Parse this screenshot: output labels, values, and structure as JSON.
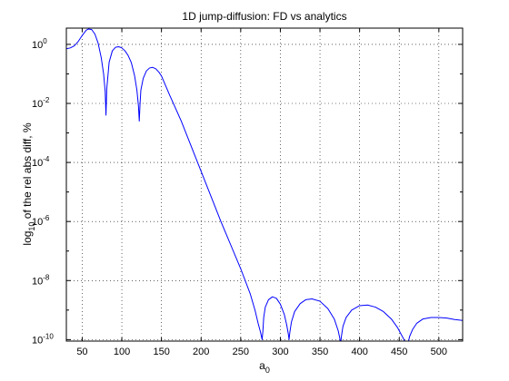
{
  "chart_data": {
    "type": "line",
    "title": "1D jump-diffusion: FD vs analytics",
    "xlabel": {
      "base": "a",
      "sub": "0"
    },
    "ylabel": {
      "pre": "log",
      "sub": "10",
      "post": " of the rel abs diff, %"
    },
    "xlim": [
      30,
      530
    ],
    "ylim_log10": [
      -10.05,
      0.55
    ],
    "y_scale": "log",
    "grid": true,
    "line_color": "#0000ff",
    "x_ticks": [
      50,
      100,
      150,
      200,
      250,
      300,
      350,
      400,
      450,
      500
    ],
    "y_ticks": [
      {
        "exp": 0,
        "label": "0"
      },
      {
        "exp": -2,
        "label": "-2"
      },
      {
        "exp": -4,
        "label": "-4"
      },
      {
        "exp": -6,
        "label": "-6"
      },
      {
        "exp": -8,
        "label": "-8"
      },
      {
        "exp": -10,
        "label": "-10"
      }
    ],
    "y_tick_base": "10",
    "series": [
      {
        "color": "#0000ff",
        "x": [
          30,
          35,
          40,
          45,
          50,
          55,
          58,
          62,
          66,
          70,
          74,
          77,
          79,
          80,
          81,
          84,
          88,
          92,
          96,
          100,
          104,
          108,
          112,
          116,
          119,
          121,
          122,
          123,
          124,
          127,
          131,
          135,
          139,
          143,
          147,
          150,
          160,
          175,
          200,
          225,
          250,
          262,
          268,
          272,
          275,
          277,
          278,
          279,
          281,
          285,
          290,
          295,
          300,
          305,
          308,
          310,
          311,
          312,
          314,
          318,
          325,
          332,
          340,
          350,
          360,
          368,
          373,
          375,
          376,
          377,
          379,
          383,
          390,
          400,
          410,
          420,
          430,
          440,
          448,
          453,
          457,
          459,
          460,
          461,
          463,
          467,
          472,
          480,
          490,
          500,
          510,
          520,
          530
        ],
        "log10_y": [
          -0.15,
          -0.12,
          -0.05,
          0.1,
          0.3,
          0.48,
          0.52,
          0.5,
          0.35,
          0.05,
          -0.45,
          -1.0,
          -1.6,
          -2.4,
          -1.5,
          -0.6,
          -0.22,
          -0.1,
          -0.08,
          -0.12,
          -0.22,
          -0.38,
          -0.62,
          -1.05,
          -1.55,
          -2.1,
          -2.6,
          -2.0,
          -1.55,
          -1.15,
          -0.9,
          -0.8,
          -0.78,
          -0.83,
          -0.95,
          -1.07,
          -1.7,
          -2.6,
          -4.3,
          -6.0,
          -7.6,
          -8.45,
          -9.0,
          -9.45,
          -9.75,
          -10.0,
          -9.7,
          -9.25,
          -8.9,
          -8.65,
          -8.55,
          -8.6,
          -8.8,
          -9.15,
          -9.5,
          -9.8,
          -10.0,
          -9.75,
          -9.4,
          -9.05,
          -8.78,
          -8.65,
          -8.62,
          -8.7,
          -8.95,
          -9.3,
          -9.7,
          -9.95,
          -10.15,
          -9.9,
          -9.55,
          -9.25,
          -9.0,
          -8.85,
          -8.83,
          -8.9,
          -9.05,
          -9.3,
          -9.6,
          -9.85,
          -10.05,
          -10.2,
          -10.25,
          -10.15,
          -9.9,
          -9.65,
          -9.45,
          -9.3,
          -9.25,
          -9.25,
          -9.27,
          -9.32,
          -9.35
        ]
      }
    ]
  }
}
